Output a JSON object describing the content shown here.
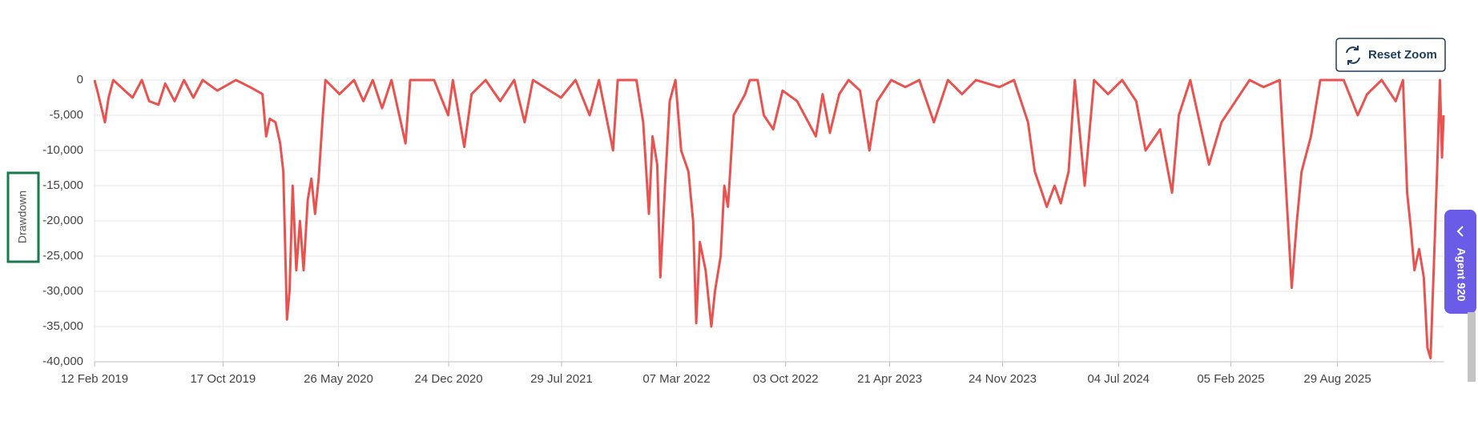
{
  "chart_data": {
    "type": "line",
    "ylabel": "Drawdown",
    "color": "#e8524f",
    "grid": true,
    "x": [
      "2019-02-12",
      "2019-02-19",
      "2019-03-04",
      "2019-03-11",
      "2019-03-20",
      "2019-04-26",
      "2019-05-14",
      "2019-05-28",
      "2019-06-15",
      "2019-06-28",
      "2019-07-16",
      "2019-08-03",
      "2019-08-21",
      "2019-09-08",
      "2019-10-06",
      "2019-11-11",
      "2019-12-08",
      "2020-01-01",
      "2020-01-08",
      "2020-01-15",
      "2020-01-26",
      "2020-02-04",
      "2020-02-10",
      "2020-02-17",
      "2020-02-22",
      "2020-02-28",
      "2020-03-06",
      "2020-03-13",
      "2020-03-20",
      "2020-03-28",
      "2020-04-04",
      "2020-04-11",
      "2020-04-18",
      "2020-04-26",
      "2020-05-01",
      "2020-05-28",
      "2020-06-25",
      "2020-07-13",
      "2020-07-31",
      "2020-08-18",
      "2020-09-05",
      "2020-10-02",
      "2020-10-11",
      "2020-11-26",
      "2020-12-23",
      "2021-01-01",
      "2021-01-23",
      "2021-02-06",
      "2021-03-05",
      "2021-04-02",
      "2021-04-29",
      "2021-05-19",
      "2021-06-04",
      "2021-07-28",
      "2021-08-25",
      "2021-09-21",
      "2021-10-09",
      "2021-11-05",
      "2021-11-14",
      "2021-12-20",
      "2022-01-02",
      "2022-01-13",
      "2022-01-20",
      "2022-01-29",
      "2022-02-04",
      "2022-02-13",
      "2022-02-22",
      "2022-03-05",
      "2022-03-16",
      "2022-03-30",
      "2022-04-08",
      "2022-04-14",
      "2022-04-21",
      "2022-05-02",
      "2022-05-13",
      "2022-05-20",
      "2022-05-31",
      "2022-06-07",
      "2022-06-14",
      "2022-06-25",
      "2022-07-17",
      "2022-07-26",
      "2022-08-10",
      "2022-08-22",
      "2022-09-09",
      "2022-09-27",
      "2022-10-25",
      "2022-11-30",
      "2022-12-13",
      "2022-12-27",
      "2023-01-14",
      "2023-02-01",
      "2023-02-23",
      "2023-03-13",
      "2023-03-28",
      "2023-04-24",
      "2023-05-21",
      "2023-06-17",
      "2023-07-15",
      "2023-08-11",
      "2023-09-07",
      "2023-10-04",
      "2023-11-18",
      "2023-12-16",
      "2024-01-12",
      "2024-01-25",
      "2024-02-08",
      "2024-02-17",
      "2024-03-03",
      "2024-03-15",
      "2024-03-30",
      "2024-04-11",
      "2024-04-30",
      "2024-05-18",
      "2024-06-14",
      "2024-07-11",
      "2024-08-07",
      "2024-08-25",
      "2024-09-22",
      "2024-10-15",
      "2024-10-28",
      "2024-11-19",
      "2024-12-07",
      "2024-12-25",
      "2025-01-18",
      "2025-02-14",
      "2025-03-13",
      "2025-04-09",
      "2025-05-10",
      "2025-05-21",
      "2025-06-02",
      "2025-06-12",
      "2025-06-21",
      "2025-07-09",
      "2025-07-27",
      "2025-09-10",
      "2025-10-07",
      "2025-10-25",
      "2025-11-22",
      "2025-12-19",
      "2026-01-02",
      "2026-01-10",
      "2026-01-17",
      "2026-01-24",
      "2026-02-02",
      "2026-02-11",
      "2026-02-18",
      "2026-02-24",
      "2026-03-03",
      "2026-03-09",
      "2026-03-14",
      "2026-03-18",
      "2026-03-21"
    ],
    "series": [
      {
        "name": "Drawdown",
        "color": "#e8524f",
        "values": [
          0,
          -2000,
          -6000,
          -2500,
          0,
          -2500,
          0,
          -3000,
          -3500,
          -500,
          -3000,
          0,
          -2500,
          0,
          -1500,
          0,
          -1000,
          -2000,
          -8000,
          -5500,
          -6000,
          -9000,
          -13000,
          -34000,
          -30000,
          -15000,
          -27000,
          -20000,
          -27000,
          -17000,
          -14000,
          -19000,
          -14000,
          -5000,
          0,
          -2000,
          0,
          -3000,
          0,
          -4000,
          0,
          -9000,
          0,
          0,
          -5000,
          0,
          -9500,
          -2000,
          0,
          -3000,
          0,
          -6000,
          0,
          -2500,
          0,
          -5000,
          0,
          -10000,
          0,
          0,
          -6000,
          -19000,
          -8000,
          -12000,
          -28000,
          -15000,
          -3000,
          0,
          -10000,
          -13000,
          -20000,
          -34500,
          -23000,
          -27000,
          -35000,
          -30000,
          -25000,
          -15000,
          -18000,
          -5000,
          -2000,
          0,
          0,
          -5000,
          -7000,
          -1500,
          -3000,
          -8000,
          -2000,
          -7500,
          -2000,
          0,
          -1500,
          -10000,
          -3000,
          0,
          -1000,
          0,
          -6000,
          0,
          -2000,
          0,
          -1000,
          0,
          -6000,
          -13000,
          -16000,
          -18000,
          -15000,
          -17500,
          -13000,
          0,
          -15000,
          0,
          -2000,
          0,
          -3000,
          -10000,
          -7000,
          -16000,
          -5000,
          0,
          -6000,
          -12000,
          -6000,
          -3000,
          0,
          -1000,
          0,
          -14000,
          -29500,
          -20000,
          -13000,
          -8000,
          0,
          0,
          -5000,
          -2000,
          0,
          -3000,
          0,
          -16000,
          -21000,
          -27000,
          -24000,
          -28000,
          -38000,
          -39500,
          -25000,
          -12000,
          0,
          -11000,
          -5000
        ]
      }
    ],
    "xlim": [
      "2019-02-12",
      "2026-03-21"
    ],
    "xticks": [
      {
        "value": "2019-02-12",
        "label": "12 Feb 2019"
      },
      {
        "value": "2019-10-17",
        "label": "17 Oct 2019"
      },
      {
        "value": "2020-05-26",
        "label": "26 May 2020"
      },
      {
        "value": "2020-12-24",
        "label": "24 Dec 2020"
      },
      {
        "value": "2021-07-29",
        "label": "29 Jul 2021"
      },
      {
        "value": "2022-03-07",
        "label": "07 Mar 2022"
      },
      {
        "value": "2022-10-03",
        "label": "03 Oct 2022"
      },
      {
        "value": "2023-04-21",
        "label": "21 Apr 2023"
      },
      {
        "value": "2023-11-24",
        "label": "24 Nov 2023"
      },
      {
        "value": "2024-07-04",
        "label": "04 Jul 2024"
      },
      {
        "value": "2025-02-05",
        "label": "05 Feb 2025"
      },
      {
        "value": "2025-08-29",
        "label": "29 Aug 2025"
      }
    ],
    "ylim": [
      -40000,
      0
    ],
    "yticks": [
      0,
      {
        "value": -5000,
        "label": "-5,000"
      },
      {
        "value": -10000,
        "label": "-10,000"
      },
      {
        "value": -15000,
        "label": "-15,000"
      },
      {
        "value": -20000,
        "label": "-20,000"
      },
      {
        "value": -25000,
        "label": "-25,000"
      },
      {
        "value": -30000,
        "label": "-30,000"
      },
      {
        "value": -35000,
        "label": "-35,000"
      },
      {
        "value": -40000,
        "label": "-40,000"
      }
    ]
  },
  "ui": {
    "reset_button": "Reset Zoom",
    "agent_tab": "Agent 920"
  }
}
